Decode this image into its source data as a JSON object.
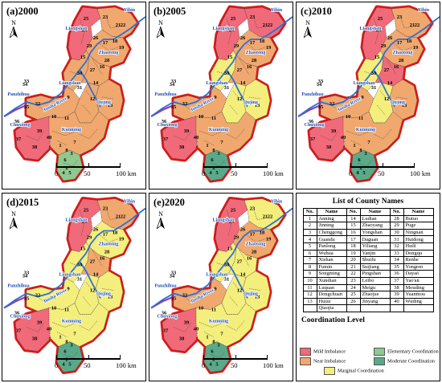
{
  "panels": [
    {
      "label": "(a)2000",
      "colors": [
        "#f06a7a",
        "#f0a86e",
        "#f0a86e",
        "#f0a86e",
        "#f0a86e",
        "#f0a86e",
        "#f0a86e",
        "#f0a86e",
        "#8fc98f",
        "#f06a7a",
        "#f0a86e"
      ]
    },
    {
      "label": "(b)2005",
      "colors": [
        "#f06a7a",
        "#f06a7a",
        "#f0a86e",
        "#f4ee7c",
        "#f0a86e",
        "#f4ee7c",
        "#f0a86e",
        "#f4ee7c",
        "#5aaa8a",
        "#f06a7a",
        "#f0a86e"
      ]
    },
    {
      "label": "(c)2010",
      "colors": [
        "#f06a7a",
        "#f0a86e",
        "#f0a86e",
        "#f4ee7c",
        "#f06a7a",
        "#f0a86e",
        "#f0a86e",
        "#f4ee7c",
        "#5aaa8a",
        "#f06a7a",
        "#f0a86e"
      ]
    },
    {
      "label": "(d)2015",
      "colors": [
        "#f06a7a",
        "#f0a86e",
        "#f4ee7c",
        "#f4ee7c",
        "#f0a86e",
        "#f4ee7c",
        "#f4ee7c",
        "#f4ee7c",
        "#5aaa8a",
        "#f06a7a",
        "#f4ee7c"
      ]
    },
    {
      "label": "(e)2020",
      "colors": [
        "#f06a7a",
        "#f4ee7c",
        "#f0a86e",
        "#f4ee7c",
        "#f4ee7c",
        "#f4ee7c",
        "#f0a86e",
        "#f4ee7c",
        "#5aaa8a",
        "#f06a7a",
        "#f4ee7c"
      ]
    }
  ],
  "map_labels": {
    "north": "N",
    "cities": [
      "Yibin",
      "Liangshan",
      "Zhaotong",
      "Liangshan",
      "Qujing",
      "Panzhihua",
      "Chuxiong",
      "Kunming"
    ],
    "river": "Jinsha River",
    "numbers": [
      "25",
      "24",
      "23",
      "22",
      "21",
      "26",
      "18",
      "19",
      "17",
      "20",
      "29",
      "28",
      "16",
      "15",
      "27",
      "30",
      "14",
      "31",
      "13",
      "12",
      "34",
      "33",
      "32",
      "35",
      "36",
      "37",
      "39",
      "10",
      "11",
      "9",
      "40",
      "1",
      "7",
      "8",
      "3",
      "6",
      "2",
      "4",
      "5",
      "38"
    ]
  },
  "scale": {
    "labels": [
      "0",
      "50",
      "100 km"
    ]
  },
  "list_title": "List of County Names",
  "table_headers": [
    "No.",
    "Name",
    "No.",
    "Name",
    "No.",
    "Name"
  ],
  "counties": [
    [
      "1",
      "Anning",
      "14",
      "Ludian",
      "28",
      "Butuo"
    ],
    [
      "2",
      "Jinning",
      "15",
      "Zhaoyang",
      "29",
      "Puge"
    ],
    [
      "3",
      "Chenggong",
      "16",
      "Yongshan",
      "30",
      "Ningnan"
    ],
    [
      "4",
      "Guandu",
      "17",
      "Daguan",
      "31",
      "Huidong"
    ],
    [
      "5",
      "Panlong",
      "18",
      "Yiliang",
      "32",
      "Huili"
    ],
    [
      "6",
      "Wuhua",
      "19",
      "Yanjin",
      "33",
      "Dongqu"
    ],
    [
      "7",
      "Xishan",
      "20",
      "Shuifu",
      "34",
      "Renhe"
    ],
    [
      "8",
      "Fumin",
      "21",
      "Suijiang",
      "35",
      "Yongren"
    ],
    [
      "9",
      "Songming",
      "22",
      "Pingshan",
      "36",
      "Dayao"
    ],
    [
      "10",
      "Xundian",
      "23",
      "Leibo",
      "37",
      "Yao'an"
    ],
    [
      "11",
      "Luquan",
      "24",
      "Meigu",
      "38",
      "Mouding"
    ],
    [
      "12",
      "Dongchuan",
      "25",
      "Zhaojue",
      "39",
      "Yuanmou"
    ],
    [
      "13",
      "Huize",
      "26",
      "Jinyang",
      "40",
      "Wuding"
    ],
    [
      "",
      "Qiaojia",
      "",
      "",
      "",
      ""
    ]
  ],
  "coordination_title": "Coordination Level",
  "legend": [
    {
      "label": "Mild Imbalance",
      "color": "#f06a7a"
    },
    {
      "label": "Elementary Coordination",
      "color": "#8fc98f"
    },
    {
      "label": "Near Imbalance",
      "color": "#f0a86e"
    },
    {
      "label": "Moderate Coordination",
      "color": "#5aaa8a"
    },
    {
      "label": "Marginal Coordination",
      "color": "#f4ee7c"
    }
  ]
}
